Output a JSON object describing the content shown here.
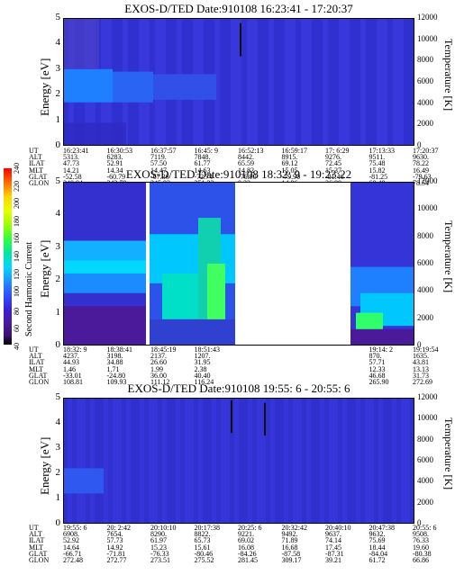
{
  "panels": [
    {
      "title": "EXOS-D/TED   Date:910108  16:23:41 - 17:20:37",
      "y_label": "Energy [eV]",
      "y_ticks": [
        "5",
        "4",
        "3",
        "2",
        "1",
        "0"
      ],
      "t_label": "Temperature [K]",
      "t_ticks": [
        "12000",
        "10000",
        "8000",
        "6000",
        "4000",
        "2000",
        "0"
      ],
      "table": {
        "labels": [
          "UT",
          "ALT",
          "ILAT",
          "MLT",
          "GLAT",
          "GLON"
        ],
        "columns": [
          [
            "16:23:41",
            "5313.",
            "47.73",
            "14.21",
            "-52.58",
            "340.84"
          ],
          [
            "16:30:53",
            "6283.",
            "52.91",
            "14.34",
            "-60.79",
            "342.78"
          ],
          [
            "16:37:57",
            "7119.",
            "57.50",
            "14.47",
            "-67.36",
            "345.93"
          ],
          [
            "16:45: 9",
            "7848.",
            "61.77",
            "14.63",
            "-72.74",
            "351.33"
          ],
          [
            "16:52:13",
            "8442.",
            "65.59",
            "14.82",
            "-76.90",
            "0.22"
          ],
          [
            "16:59:17",
            "8915.",
            "69.12",
            "15.05",
            "-79.90",
            "14.86"
          ],
          [
            "17: 6:29",
            "9276.",
            "72.45",
            "15.37",
            "-81.46",
            "36.88"
          ],
          [
            "17:13:33",
            "9511.",
            "75.48",
            "15.82",
            "-81.25",
            "60.49"
          ],
          [
            "17:20:37",
            "9630.",
            "78.22",
            "16.49",
            "-79.63",
            "78.54"
          ]
        ]
      }
    },
    {
      "title": "EXOS-D/TED   Date:910108  18:32: 9 - 19:23:22",
      "y_label": "Energy [eV]",
      "y_ticks": [
        "5",
        "4",
        "3",
        "2",
        "1",
        "0"
      ],
      "t_label": "Temperature [K]",
      "t_ticks": [
        "12000",
        "10000",
        "8000",
        "6000",
        "4000",
        "2000",
        "0"
      ],
      "table": {
        "labels": [
          "UT",
          "ALT",
          "ILAT",
          "MLT",
          "GLAT",
          "GLON"
        ],
        "columns": [
          [
            "18:32: 9",
            "4237.",
            "44.93",
            "1.46",
            "-33.01",
            "108.81"
          ],
          [
            "18:38:41",
            "3198.",
            "34.88",
            "1.71",
            "-24.80",
            "109.93"
          ],
          [
            "18:45:19",
            "2137.",
            "26.60",
            "1.99",
            "36.00",
            "111.12"
          ],
          [
            "18:51:43",
            "1207.",
            "31.95",
            "2.38",
            "40.40",
            "116.24"
          ],
          [
            "",
            "",
            "",
            "",
            "",
            ""
          ],
          [
            "",
            "",
            "",
            "",
            "",
            ""
          ],
          [
            "",
            "",
            "",
            "",
            "",
            ""
          ],
          [
            "19:14: 2",
            "870.",
            "57.71",
            "12.33",
            "46.68",
            "265.90"
          ],
          [
            "19:19:54",
            "1635.",
            "43.81",
            "13.13",
            "31.73",
            "272.69"
          ]
        ]
      }
    },
    {
      "title": "EXOS-D/TED   Date:910108  19:55: 6 - 20:55: 6",
      "y_label": "Energy [eV]",
      "y_ticks": [
        "5",
        "4",
        "3",
        "2",
        "1",
        "0"
      ],
      "t_label": "Temperature [K]",
      "t_ticks": [
        "12000",
        "10000",
        "8000",
        "6000",
        "4000",
        "2000",
        "0"
      ],
      "table": {
        "labels": [
          "UT",
          "ALT",
          "ILAT",
          "MLT",
          "GLAT",
          "GLON"
        ],
        "columns": [
          [
            "19:55: 6",
            "6908.",
            "52.92",
            "14.64",
            "-66.71",
            "272.48"
          ],
          [
            "20: 2:42",
            "7654.",
            "57.73",
            "14.92",
            "-71.81",
            "272.77"
          ],
          [
            "20:10:10",
            "8290.",
            "61.97",
            "15.23",
            "-76.33",
            "273.51"
          ],
          [
            "20:17:38",
            "8822.",
            "65.73",
            "15.61",
            "-80.46",
            "275.52"
          ],
          [
            "20:25: 6",
            "9221.",
            "69.02",
            "16.08",
            "-84.26",
            "281.45"
          ],
          [
            "20:32:42",
            "9492.",
            "71.89",
            "16.68",
            "-87.58",
            "309.17"
          ],
          [
            "20:40:10",
            "9637.",
            "74.14",
            "17.45",
            "-87.31",
            "39.21"
          ],
          [
            "20:47:38",
            "9632.",
            "75.69",
            "18.44",
            "-84.04",
            "61.72"
          ],
          [
            "20:55: 6",
            "9508.",
            "76.33",
            "19.60",
            "-80.38",
            "66.86"
          ]
        ]
      }
    }
  ],
  "colorbar": {
    "label": "Second Harmonic Current",
    "ticks": [
      "240",
      "220",
      "200",
      "180",
      "160",
      "140",
      "120",
      "100",
      "80",
      "60",
      "40"
    ],
    "colors": [
      "#ff0000",
      "#ff6a00",
      "#ffd400",
      "#e8ff00",
      "#9cff00",
      "#2eff3a",
      "#00e8a0",
      "#00d8ff",
      "#1e90ff",
      "#3050ff",
      "#3a1fd8",
      "#4a1aa0",
      "#3a1070",
      "#000000"
    ]
  },
  "chart_data": [
    {
      "type": "heatmap",
      "title": "EXOS-D/TED   Date:910108  16:23:41 - 17:20:37",
      "ylabel": "Energy [eV]",
      "y2label": "Temperature [K]",
      "ylim": [
        0,
        5
      ],
      "y2lim": [
        0,
        12000
      ],
      "x": [
        "16:23:41",
        "16:30:53",
        "16:37:57",
        "16:45: 9",
        "16:52:13",
        "16:59:17",
        "17: 6:29",
        "17:13:33",
        "17:20:37"
      ]
    },
    {
      "type": "heatmap",
      "title": "EXOS-D/TED   Date:910108  18:32: 9 - 19:23:22",
      "ylabel": "Energy [eV]",
      "y2label": "Temperature [K]",
      "ylim": [
        0,
        5
      ],
      "y2lim": [
        0,
        12000
      ],
      "x": [
        "18:32: 9",
        "18:38:41",
        "18:45:19",
        "18:51:43",
        "19:14: 2",
        "19:19:54"
      ]
    },
    {
      "type": "heatmap",
      "title": "EXOS-D/TED   Date:910108  19:55: 6 - 20:55: 6",
      "ylabel": "Energy [eV]",
      "y2label": "Temperature [K]",
      "ylim": [
        0,
        5
      ],
      "y2lim": [
        0,
        12000
      ],
      "x": [
        "19:55: 6",
        "20: 2:42",
        "20:10:10",
        "20:17:38",
        "20:25: 6",
        "20:32:42",
        "20:40:10",
        "20:47:38",
        "20:55: 6"
      ]
    }
  ]
}
